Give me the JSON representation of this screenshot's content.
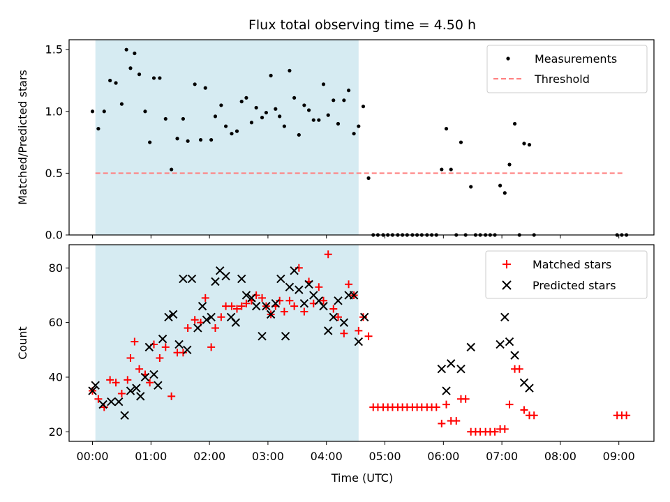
{
  "title": "Flux total observing time = 4.50 h",
  "xlabel": "Time (UTC)",
  "x_ticks": [
    "00:00",
    "01:00",
    "02:00",
    "03:00",
    "04:00",
    "05:00",
    "06:00",
    "07:00",
    "08:00",
    "09:00"
  ],
  "colors": {
    "threshold": "#ff7f7f",
    "matched": "#ff0000",
    "predicted": "#000000",
    "shade": "#add8e6",
    "measurement": "#000000"
  },
  "chart_data": [
    {
      "type": "scatter",
      "ylabel": "Matched/Predicted stars",
      "xlim": [
        -0.4,
        9.6
      ],
      "ylim": [
        0,
        1.58
      ],
      "y_ticks": [
        "0.0",
        "0.5",
        "1.0",
        "1.5"
      ],
      "legend_position": "top-right",
      "shaded_span_hours": [
        0.05,
        4.55
      ],
      "threshold": {
        "name": "Threshold",
        "value": 0.5,
        "x_range_hours": [
          0.05,
          9.1
        ]
      },
      "series": [
        {
          "name": "Measurements",
          "x_hours": [
            0.0,
            0.1,
            0.2,
            0.3,
            0.4,
            0.5,
            0.58,
            0.65,
            0.72,
            0.8,
            0.9,
            0.98,
            1.05,
            1.15,
            1.25,
            1.35,
            1.45,
            1.55,
            1.63,
            1.75,
            1.85,
            1.93,
            2.03,
            2.1,
            2.2,
            2.28,
            2.38,
            2.47,
            2.55,
            2.63,
            2.72,
            2.8,
            2.9,
            2.97,
            3.05,
            3.13,
            3.2,
            3.28,
            3.37,
            3.45,
            3.53,
            3.62,
            3.7,
            3.78,
            3.87,
            3.95,
            4.03,
            4.12,
            4.2,
            4.3,
            4.38,
            4.47,
            4.55,
            4.63,
            4.72,
            4.8,
            4.88,
            4.97,
            5.05,
            5.13,
            5.22,
            5.3,
            5.38,
            5.47,
            5.55,
            5.63,
            5.72,
            5.8,
            5.88,
            5.97,
            6.05,
            6.13,
            6.22,
            6.3,
            6.38,
            6.47,
            6.55,
            6.63,
            6.72,
            6.8,
            6.88,
            6.97,
            7.05,
            7.13,
            7.22,
            7.3,
            7.38,
            7.47,
            7.55,
            8.97,
            9.05,
            9.13
          ],
          "values": [
            1.0,
            0.86,
            1.0,
            1.25,
            1.23,
            1.06,
            1.5,
            1.35,
            1.47,
            1.3,
            1.0,
            0.75,
            1.27,
            1.27,
            0.94,
            0.53,
            0.78,
            0.94,
            0.76,
            1.22,
            0.77,
            1.19,
            0.77,
            0.96,
            1.05,
            0.88,
            0.82,
            0.84,
            1.08,
            1.11,
            0.91,
            1.03,
            0.95,
            0.99,
            1.29,
            1.02,
            0.96,
            0.88,
            1.33,
            1.11,
            0.81,
            1.05,
            1.01,
            0.93,
            0.93,
            1.22,
            0.97,
            1.09,
            0.9,
            1.09,
            1.17,
            0.82,
            0.88,
            1.04,
            0.46,
            0.0,
            0.0,
            0.0,
            0.0,
            0.0,
            0.0,
            0.0,
            0.0,
            0.0,
            0.0,
            0.0,
            0.0,
            0.0,
            0.0,
            0.53,
            0.86,
            0.53,
            0.0,
            0.75,
            0.0,
            0.39,
            0.0,
            0.0,
            0.0,
            0.0,
            0.0,
            0.4,
            0.34,
            0.57,
            0.9,
            0.0,
            0.74,
            0.73,
            0.0,
            0.0,
            0.0,
            0.0
          ]
        }
      ]
    },
    {
      "type": "scatter",
      "ylabel": "Count",
      "xlim": [
        -0.4,
        9.6
      ],
      "ylim": [
        16.5,
        88.5
      ],
      "y_ticks": [
        "20",
        "40",
        "60",
        "80"
      ],
      "legend_position": "top-right",
      "shaded_span_hours": [
        0.05,
        4.55
      ],
      "series": [
        {
          "name": "Matched stars",
          "marker": "plus",
          "x_hours": [
            0.0,
            0.1,
            0.2,
            0.3,
            0.4,
            0.5,
            0.6,
            0.65,
            0.72,
            0.8,
            0.9,
            0.98,
            1.05,
            1.15,
            1.25,
            1.35,
            1.45,
            1.55,
            1.63,
            1.75,
            1.85,
            1.93,
            2.03,
            2.1,
            2.2,
            2.28,
            2.38,
            2.47,
            2.55,
            2.63,
            2.72,
            2.8,
            2.9,
            2.97,
            3.05,
            3.13,
            3.2,
            3.28,
            3.37,
            3.45,
            3.53,
            3.62,
            3.7,
            3.78,
            3.87,
            3.95,
            4.03,
            4.12,
            4.2,
            4.3,
            4.38,
            4.47,
            4.55,
            4.63,
            4.72,
            4.8,
            4.88,
            4.97,
            5.05,
            5.13,
            5.22,
            5.3,
            5.38,
            5.47,
            5.55,
            5.63,
            5.72,
            5.8,
            5.88,
            5.97,
            6.05,
            6.13,
            6.22,
            6.3,
            6.38,
            6.47,
            6.55,
            6.63,
            6.72,
            6.8,
            6.88,
            6.97,
            7.05,
            7.13,
            7.22,
            7.3,
            7.38,
            7.47,
            7.55,
            8.97,
            9.05,
            9.13
          ],
          "values": [
            35,
            32,
            29,
            39,
            38,
            34,
            39,
            47,
            53,
            43,
            41,
            38,
            52,
            47,
            51,
            33,
            49,
            49,
            58,
            61,
            60,
            69,
            51,
            58,
            62,
            66,
            66,
            65,
            66,
            67,
            68,
            70,
            69,
            66,
            63,
            66,
            68,
            64,
            68,
            66,
            80,
            64,
            75,
            67,
            73,
            68,
            85,
            65,
            62,
            56,
            74,
            70,
            57,
            62,
            55,
            29,
            29,
            29,
            29,
            29,
            29,
            29,
            29,
            29,
            29,
            29,
            29,
            29,
            29,
            23,
            30,
            24,
            24,
            32,
            32,
            20,
            20,
            20,
            20,
            20,
            20,
            21,
            21,
            30,
            43,
            43,
            28,
            26,
            26,
            26,
            26,
            26
          ]
        },
        {
          "name": "Predicted stars",
          "marker": "x",
          "x_hours": [
            0.0,
            0.05,
            0.18,
            0.32,
            0.45,
            0.55,
            0.65,
            0.75,
            0.82,
            0.9,
            0.97,
            1.05,
            1.12,
            1.2,
            1.3,
            1.38,
            1.48,
            1.55,
            1.62,
            1.7,
            1.8,
            1.88,
            1.95,
            2.03,
            2.1,
            2.18,
            2.28,
            2.37,
            2.45,
            2.55,
            2.63,
            2.72,
            2.8,
            2.9,
            2.97,
            3.05,
            3.13,
            3.22,
            3.3,
            3.37,
            3.45,
            3.53,
            3.62,
            3.7,
            3.78,
            3.87,
            3.95,
            4.03,
            4.12,
            4.2,
            4.3,
            4.38,
            4.47,
            4.55,
            4.65,
            5.97,
            6.05,
            6.13,
            6.3,
            6.47,
            6.97,
            7.05,
            7.13,
            7.22,
            7.38,
            7.47
          ],
          "values": [
            35,
            37,
            30,
            31,
            31,
            26,
            35,
            36,
            33,
            40,
            51,
            41,
            37,
            54,
            62,
            63,
            52,
            76,
            50,
            76,
            58,
            66,
            61,
            62,
            75,
            79,
            77,
            62,
            60,
            76,
            70,
            69,
            66,
            55,
            66,
            63,
            67,
            76,
            55,
            73,
            79,
            72,
            67,
            74,
            70,
            68,
            66,
            57,
            62,
            68,
            60,
            70,
            70,
            53,
            62,
            43,
            35,
            45,
            43,
            51,
            52,
            62,
            53,
            48,
            38,
            36
          ]
        }
      ]
    }
  ]
}
